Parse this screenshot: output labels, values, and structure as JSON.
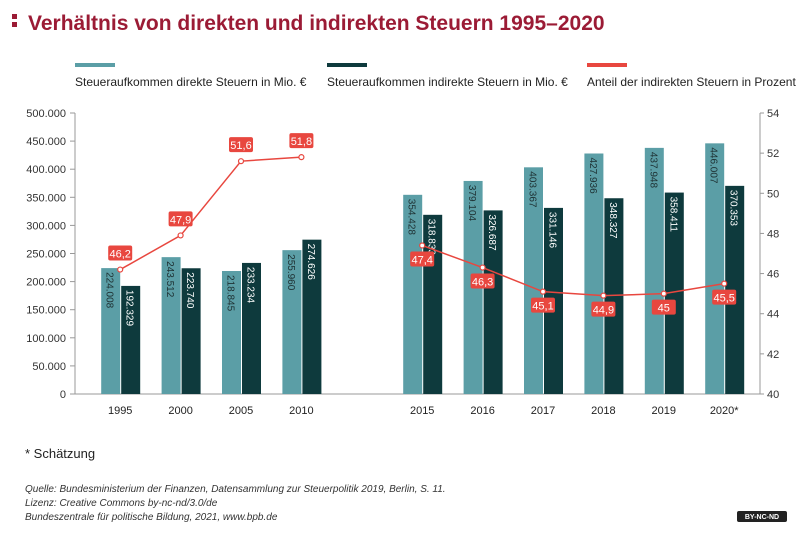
{
  "chart_data": {
    "type": "bar",
    "title": "Verhältnis von direkten und indirekten Steuern 1995–2020",
    "categories": [
      "1995",
      "2000",
      "2005",
      "2010",
      null,
      "2015",
      "2016",
      "2017",
      "2018",
      "2019",
      "2020*"
    ],
    "series": [
      {
        "name": "Steueraufkommen direkte Steuern in Mio. €",
        "color": "#5b9ea6",
        "values": [
          224008,
          243512,
          218845,
          255960,
          null,
          354428,
          379104,
          403367,
          427936,
          437948,
          446007
        ],
        "value_labels": [
          "224.008",
          "243.512",
          "218.845",
          "255.960",
          null,
          "354.428",
          "379.104",
          "403.367",
          "427.936",
          "437.948",
          "446.007"
        ]
      },
      {
        "name": "Steueraufkommen indirekte Steuern in Mio. €",
        "color": "#0e3a3d",
        "values": [
          192329,
          223740,
          233234,
          274626,
          null,
          318833,
          326687,
          331146,
          348327,
          358411,
          370353
        ],
        "value_labels": [
          "192.329",
          "223.740",
          "233.234",
          "274.626",
          null,
          "318.833",
          "326.687",
          "331.146",
          "348.327",
          "358.411",
          "370.353"
        ]
      },
      {
        "name": "Anteil der indirekten Steuern in Prozent",
        "color": "#e8473f",
        "type": "line",
        "axis": "y2",
        "values": [
          46.2,
          47.9,
          51.6,
          51.8,
          null,
          47.4,
          46.3,
          45.1,
          44.9,
          45,
          45.5
        ],
        "value_labels": [
          "46,2",
          "47,9",
          "51,6",
          "51,8",
          null,
          "47,4",
          "46,3",
          "45,1",
          "44,9",
          "45",
          "45,5"
        ]
      }
    ],
    "ylim": [
      0,
      500000
    ],
    "yticks": [
      0,
      {
        "value": 50000,
        "label": "50.000"
      },
      {
        "value": 100000,
        "label": "100.000"
      },
      {
        "value": 150000,
        "label": "150.000"
      },
      {
        "value": 200000,
        "label": "200.000"
      },
      {
        "value": 250000,
        "label": "250.000"
      },
      {
        "value": 300000,
        "label": "300.000"
      },
      {
        "value": 350000,
        "label": "350.000"
      },
      {
        "value": 400000,
        "label": "400.000"
      },
      {
        "value": 450000,
        "label": "450.000"
      },
      {
        "value": 500000,
        "label": "500.000"
      }
    ],
    "y2lim": [
      40,
      54
    ],
    "y2ticks": [
      40,
      42,
      44,
      46,
      48,
      50,
      52,
      54
    ],
    "grid": false
  },
  "notes": {
    "footnote": "* Schätzung",
    "source": [
      "Quelle: Bundesministerium der Finanzen, Datensammlung zur Steuerpolitik 2019, Berlin, S. 11.",
      "Lizenz: Creative Commons by-nc-nd/3.0/de",
      "Bundeszentrale für politische Bildung, 2021, www.bpb.de"
    ],
    "badge": "BY-NC-ND"
  }
}
